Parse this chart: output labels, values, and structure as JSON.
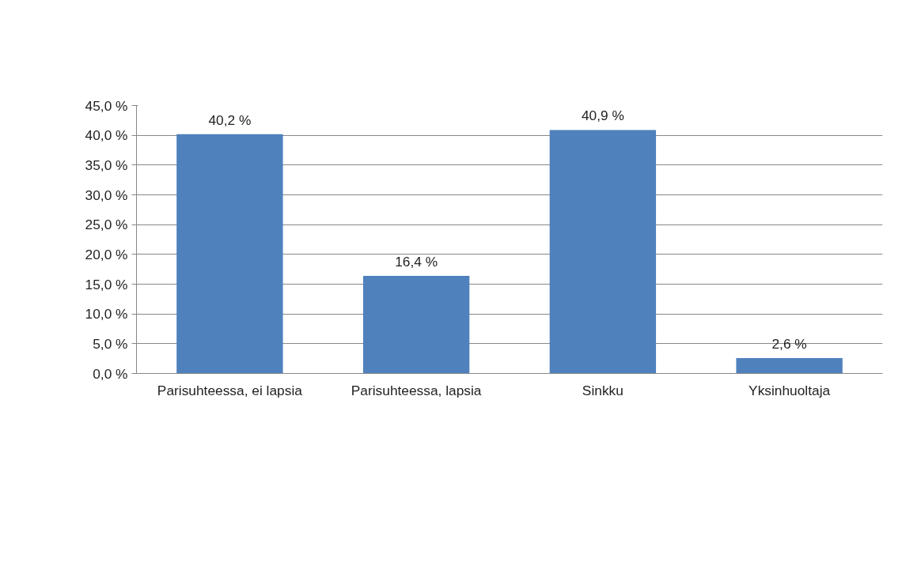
{
  "chart_data": {
    "type": "bar",
    "categories": [
      "Parisuhteessa, ei lapsia",
      "Parisuhteessa, lapsia",
      "Sinkku",
      "Yksinhuoltaja"
    ],
    "values": [
      40.2,
      16.4,
      40.9,
      2.6
    ],
    "value_labels": [
      "40,2 %",
      "16,4 %",
      "40,9 %",
      "2,6 %"
    ],
    "color": "#4f81bd",
    "ylim": [
      0,
      45
    ],
    "yticks": [
      {
        "value": 0,
        "label": "0,0 %"
      },
      {
        "value": 5,
        "label": "5,0 %"
      },
      {
        "value": 10,
        "label": "10,0 %"
      },
      {
        "value": 15,
        "label": "15,0 %"
      },
      {
        "value": 20,
        "label": "20,0 %"
      },
      {
        "value": 25,
        "label": "25,0 %"
      },
      {
        "value": 30,
        "label": "30,0 %"
      },
      {
        "value": 35,
        "label": "35,0 %"
      },
      {
        "value": 40,
        "label": "40,0 %"
      },
      {
        "value": 45,
        "label": "45,0 %"
      }
    ],
    "grid": "y"
  }
}
